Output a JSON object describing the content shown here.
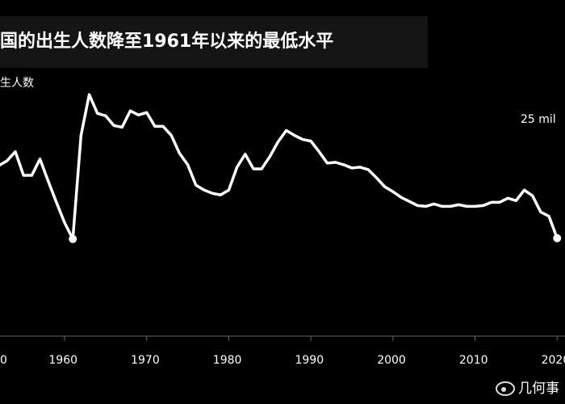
{
  "chart_data": {
    "type": "line",
    "title": "国的出生人数降至1961年以来的最低水平",
    "subtitle": "生人数",
    "annotation": "25 mil",
    "watermark": "几何事",
    "x": [
      1952,
      1953,
      1954,
      1955,
      1956,
      1957,
      1958,
      1959,
      1960,
      1961,
      1962,
      1963,
      1964,
      1965,
      1966,
      1967,
      1968,
      1969,
      1970,
      1971,
      1972,
      1973,
      1974,
      1975,
      1976,
      1977,
      1978,
      1979,
      1980,
      1981,
      1982,
      1983,
      1984,
      1985,
      1986,
      1987,
      1988,
      1989,
      1990,
      1991,
      1992,
      1993,
      1994,
      1995,
      1996,
      1997,
      1998,
      1999,
      2000,
      2001,
      2002,
      2003,
      2004,
      2005,
      2006,
      2007,
      2008,
      2009,
      2010,
      2011,
      2012,
      2013,
      2014,
      2015,
      2016,
      2017,
      2018,
      2019,
      2020
    ],
    "series": [
      {
        "name": "births",
        "color": "#ffffff",
        "values": [
          20.9,
          21.5,
          22.6,
          19.7,
          19.7,
          21.7,
          19.0,
          16.4,
          13.9,
          11.9,
          24.6,
          29.6,
          27.3,
          27.0,
          25.8,
          25.6,
          27.6,
          27.1,
          27.4,
          25.7,
          25.7,
          24.6,
          22.4,
          21.0,
          18.5,
          17.9,
          17.5,
          17.3,
          17.9,
          20.7,
          22.3,
          20.5,
          20.5,
          22.0,
          23.8,
          25.2,
          24.6,
          24.1,
          23.9,
          22.6,
          21.2,
          21.3,
          21.0,
          20.6,
          20.7,
          20.4,
          19.4,
          18.3,
          17.7,
          17.0,
          16.5,
          16.0,
          15.9,
          16.2,
          15.9,
          15.9,
          16.1,
          15.9,
          15.9,
          16.0,
          16.4,
          16.4,
          16.9,
          16.6,
          17.9,
          17.2,
          15.2,
          14.7,
          12.0
        ]
      }
    ],
    "highlight_x": [
      1961,
      2020
    ],
    "xlim": [
      1952.13,
      2020.96
    ],
    "ylim": [
      -8.32,
      41.19
    ],
    "xticks": [
      {
        "value": 1950,
        "label": "0"
      },
      1960,
      1970,
      1980,
      1990,
      2000,
      2010,
      2020
    ]
  }
}
